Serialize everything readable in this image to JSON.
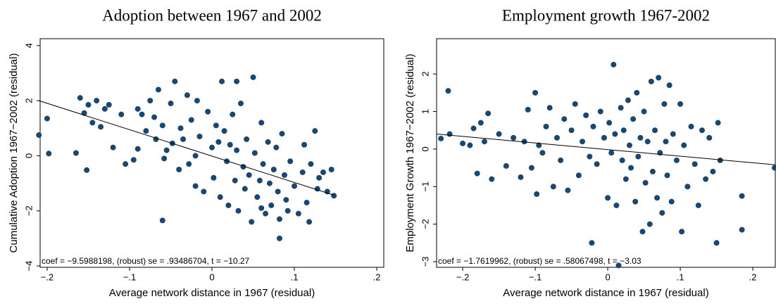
{
  "chart_data": [
    {
      "type": "scatter",
      "title": "Adoption between 1967 and 2002",
      "xlabel": "Average network distance in 1967 (residual)",
      "ylabel": "Cumulative Adoption 1967−2002 (residual)",
      "annotation": "coef = −9.5988198, (robust) se = .93486704, t = −10.27",
      "color": "#1a476f",
      "x": [
        -0.21,
        -0.2,
        -0.198,
        -0.165,
        -0.16,
        -0.155,
        -0.152,
        -0.15,
        -0.145,
        -0.14,
        -0.135,
        -0.13,
        -0.125,
        -0.12,
        -0.11,
        -0.105,
        -0.095,
        -0.09,
        -0.085,
        -0.08,
        -0.075,
        -0.07,
        -0.068,
        -0.065,
        -0.06,
        -0.058,
        -0.055,
        -0.05,
        -0.048,
        -0.045,
        -0.04,
        -0.038,
        -0.035,
        -0.03,
        -0.028,
        -0.025,
        -0.02,
        -0.018,
        -0.015,
        -0.01,
        -0.005,
        0,
        0.002,
        0.005,
        0.008,
        0.01,
        0.012,
        0.015,
        0.018,
        0.02,
        0.022,
        0.025,
        0.028,
        0.03,
        0.032,
        0.035,
        0.038,
        0.04,
        0.042,
        0.045,
        0.048,
        0.05,
        0.052,
        0.055,
        0.058,
        0.06,
        0.062,
        0.065,
        0.068,
        0.07,
        0.072,
        0.075,
        0.078,
        0.08,
        0.082,
        0.085,
        0.088,
        0.09,
        0.092,
        0.095,
        0.1,
        0.105,
        0.11,
        0.112,
        0.115,
        0.118,
        0.12,
        0.125,
        0.128,
        0.13,
        0.135,
        0.14,
        0.145,
        0.148,
        0.082,
        -0.06,
        0.03,
        -0.09,
        0.06,
        -0.02
      ],
      "y": [
        0.75,
        1.35,
        0.08,
        0.1,
        2.1,
        1.55,
        -0.52,
        1.85,
        1.2,
        2.0,
        1.05,
        1.7,
        1.85,
        0.3,
        1.5,
        -0.3,
        -0.15,
        1.7,
        1.5,
        0.9,
        2.0,
        1.4,
        0.6,
        2.4,
        1.1,
        -0.1,
        0.2,
        1.9,
        0.45,
        2.7,
        -0.5,
        1.0,
        0.6,
        2.2,
        -0.3,
        1.3,
        0.0,
        2.0,
        0.7,
        -1.3,
        1.6,
        0.3,
        -0.8,
        1.1,
        0.5,
        -1.5,
        2.7,
        0.9,
        -0.2,
        -1.8,
        0.4,
        1.5,
        -0.9,
        0.2,
        -2.0,
        1.9,
        -0.4,
        -1.2,
        0.6,
        -0.7,
        -2.4,
        2.85,
        0.1,
        -1.5,
        -0.9,
        1.2,
        -0.3,
        -2.1,
        0.5,
        -1.0,
        -1.8,
        -0.5,
        0.3,
        -1.3,
        -2.3,
        0.8,
        -0.7,
        -1.6,
        -2.0,
        -0.2,
        -1.1,
        -2.1,
        -0.6,
        0.4,
        -1.7,
        -2.4,
        -0.3,
        0.9,
        -1.2,
        -0.8,
        -0.6,
        -1.3,
        -0.5,
        -1.45,
        -3.0,
        -2.35,
        2.7,
        0.25,
        -1.9,
        -1.1
      ],
      "fit_line": {
        "x": [
          -0.21,
          0.148
        ],
        "y": [
          2.0,
          -1.43
        ]
      },
      "xlim": [
        -0.2085,
        0.2085
      ],
      "ylim": [
        -4.05,
        4.25
      ],
      "xticks": [
        {
          "value": -0.2,
          "label": "−.2"
        },
        {
          "value": -0.1,
          "label": "−.1"
        },
        0,
        {
          "value": 0.1,
          "label": ".1"
        },
        {
          "value": 0.2,
          "label": ".2"
        }
      ],
      "yticks": [
        {
          "value": -4,
          "label": "−4"
        },
        {
          "value": -2,
          "label": "−2"
        },
        0,
        2,
        4
      ]
    },
    {
      "type": "scatter",
      "title": "Employment growth 1967-2002",
      "xlabel": "Average network distance in 1967 (residual)",
      "ylabel": "Employment Growth 1967−2002 (residual)",
      "annotation": "coef = −1.7619962, (robust) se = .58067498, t = −3.03",
      "color": "#1a476f",
      "x": [
        -0.23,
        -0.22,
        -0.218,
        -0.2,
        -0.19,
        -0.185,
        -0.18,
        -0.175,
        -0.17,
        -0.165,
        -0.16,
        -0.15,
        -0.14,
        -0.13,
        -0.12,
        -0.115,
        -0.11,
        -0.105,
        -0.1,
        -0.098,
        -0.095,
        -0.09,
        -0.085,
        -0.08,
        -0.075,
        -0.07,
        -0.065,
        -0.06,
        -0.055,
        -0.05,
        -0.045,
        -0.04,
        -0.035,
        -0.03,
        -0.025,
        -0.022,
        -0.02,
        -0.015,
        -0.01,
        -0.005,
        0,
        0.002,
        0.005,
        0.008,
        0.01,
        0.012,
        0.015,
        0.018,
        0.02,
        0.022,
        0.025,
        0.028,
        0.03,
        0.032,
        0.035,
        0.038,
        0.04,
        0.042,
        0.045,
        0.048,
        0.05,
        0.052,
        0.055,
        0.058,
        0.06,
        0.062,
        0.065,
        0.068,
        0.07,
        0.072,
        0.075,
        0.078,
        0.08,
        0.082,
        0.085,
        0.088,
        0.09,
        0.095,
        0.1,
        0.102,
        0.105,
        0.11,
        0.115,
        0.12,
        0.125,
        0.13,
        0.135,
        0.14,
        0.145,
        0.15,
        0.152,
        0.155,
        0.185,
        0.185,
        0.23
      ],
      "y": [
        0.28,
        1.55,
        0.4,
        0.15,
        0.1,
        0.55,
        -0.65,
        0.7,
        0.2,
        0.95,
        -0.8,
        0.4,
        -0.45,
        0.3,
        -0.75,
        0.2,
        1.05,
        -0.5,
        1.5,
        -1.2,
        0.1,
        -0.1,
        0.6,
        1.1,
        -1.0,
        0.3,
        -0.3,
        0.8,
        -1.1,
        0.5,
        1.2,
        -0.7,
        0.2,
        0.9,
        -0.2,
        -2.5,
        0.6,
        -0.4,
        1.0,
        0.3,
        -1.3,
        0.7,
        -0.1,
        2.25,
        0.4,
        -1.5,
        -3.1,
        1.1,
        -0.3,
        0.5,
        -0.8,
        1.3,
        0.1,
        -0.5,
        0.8,
        -1.4,
        1.5,
        -0.2,
        0.3,
        -2.2,
        1.0,
        -0.9,
        0.2,
        -2.0,
        1.8,
        -0.6,
        0.5,
        -1.3,
        1.9,
        -0.1,
        -1.7,
        1.2,
        0.2,
        -0.7,
        1.7,
        -1.4,
        0.4,
        -0.3,
        1.2,
        -2.2,
        0.1,
        -1.0,
        0.6,
        -0.4,
        -1.5,
        0.5,
        -0.8,
        0.3,
        -0.6,
        -2.5,
        0.7,
        -0.3,
        -1.25,
        -2.15,
        -0.5
      ],
      "fit_line": {
        "x": [
          -0.236,
          0.231
        ],
        "y": [
          0.4,
          -0.42
        ]
      },
      "xlim": [
        -0.236,
        0.231
      ],
      "ylim": [
        -3.15,
        2.94
      ],
      "xticks": [
        {
          "value": -0.2,
          "label": "−.2"
        },
        {
          "value": -0.1,
          "label": "−.1"
        },
        0,
        {
          "value": 0.1,
          "label": ".1"
        },
        {
          "value": 0.2,
          "label": ".2"
        }
      ],
      "yticks": [
        {
          "value": -3,
          "label": "−3"
        },
        {
          "value": -2,
          "label": "−2"
        },
        {
          "value": -1,
          "label": "−1"
        },
        0,
        1,
        2
      ]
    }
  ]
}
